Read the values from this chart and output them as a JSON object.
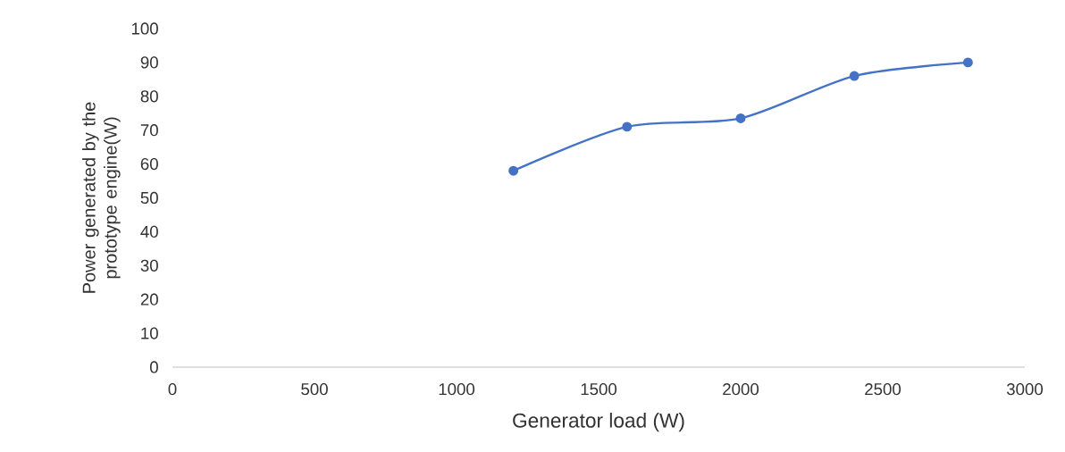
{
  "chart_data": {
    "type": "line",
    "xlabel": "Generator  load (W)",
    "ylabel": "Power generated by the prototype engine(W)",
    "x": [
      1200,
      1600,
      2000,
      2400,
      2800
    ],
    "series": [
      {
        "color": "#4472c4",
        "values": [
          58,
          71,
          73.5,
          86,
          90
        ]
      }
    ],
    "xlim": [
      0,
      3000
    ],
    "xticks": [
      0,
      500,
      1000,
      1500,
      2000,
      2500,
      3000
    ],
    "ylim": [
      0,
      100
    ],
    "yticks": [
      0,
      10,
      20,
      30,
      40,
      50,
      60,
      70,
      80,
      90,
      100
    ],
    "marker": "circle",
    "line_style": "solid"
  }
}
